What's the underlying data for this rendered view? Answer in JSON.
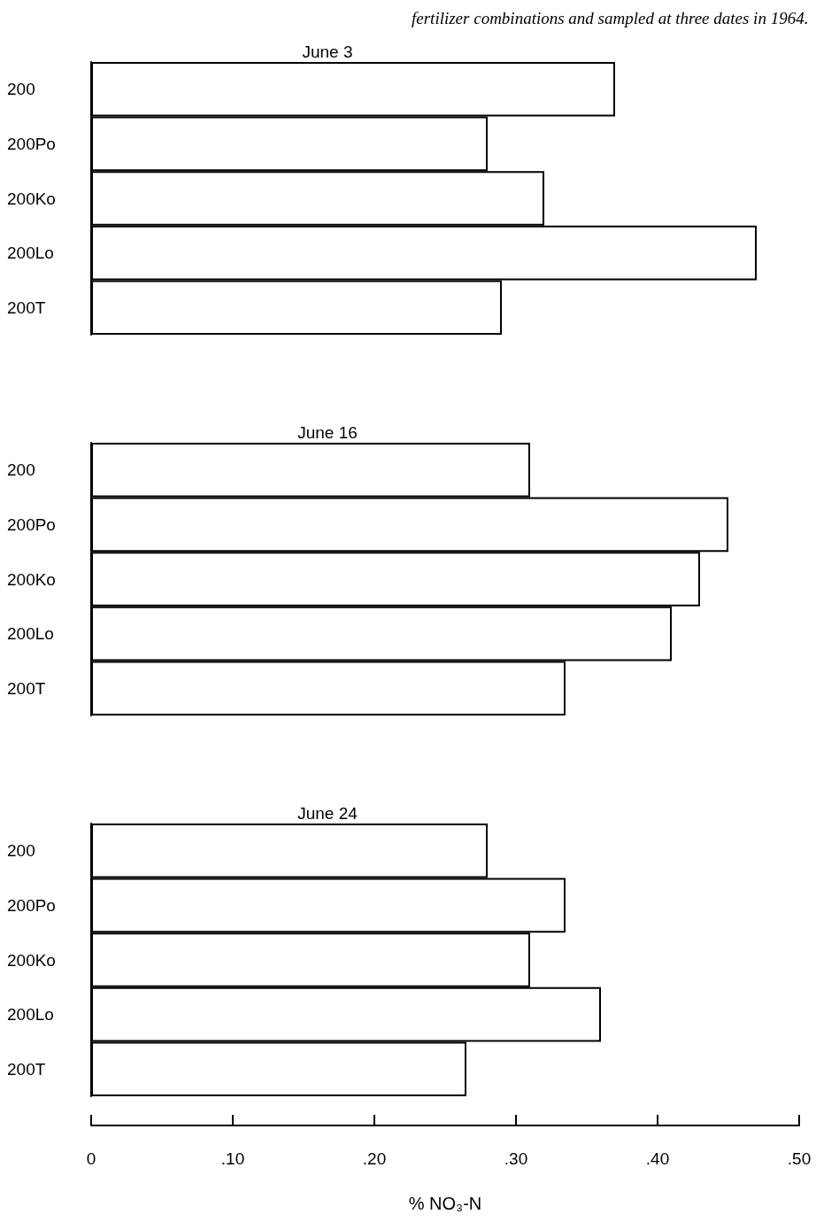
{
  "chart_data": [
    {
      "type": "bar",
      "orientation": "horizontal",
      "title": "June 3",
      "annotations": [
        "fertilizer combinations and sampled at three dates in 1964."
      ],
      "categories": [
        "200",
        "200Po",
        "200Ko",
        "200Lo",
        "200T"
      ],
      "values": [
        0.37,
        0.28,
        0.32,
        0.47,
        0.29
      ],
      "color": "#ffffff",
      "xlim": [
        0,
        0.5
      ],
      "grid": false,
      "tick_labels": "y"
    },
    {
      "type": "bar",
      "orientation": "horizontal",
      "title": "June 16",
      "categories": [
        "200",
        "200Po",
        "200Ko",
        "200Lo",
        "200T"
      ],
      "values": [
        0.31,
        0.45,
        0.43,
        0.41,
        0.335
      ],
      "color": "#ffffff",
      "xlim": [
        0,
        0.5
      ],
      "grid": false,
      "tick_labels": "y"
    },
    {
      "type": "bar",
      "orientation": "horizontal",
      "title": "June 24",
      "xlabel": "% NO₃-N",
      "categories": [
        "200",
        "200Po",
        "200Ko",
        "200Lo",
        "200T"
      ],
      "values": [
        0.28,
        0.335,
        0.31,
        0.36,
        0.265
      ],
      "color": "#ffffff",
      "xlim": [
        0,
        0.5
      ],
      "xticks": [
        0,
        {
          "value": 0.1,
          "label": ".10"
        },
        {
          "value": 0.2,
          "label": ".20"
        },
        {
          "value": 0.3,
          "label": ".30"
        },
        {
          "value": 0.4,
          "label": ".40"
        },
        {
          "value": 0.5,
          "label": ".50"
        }
      ],
      "grid": false
    }
  ]
}
